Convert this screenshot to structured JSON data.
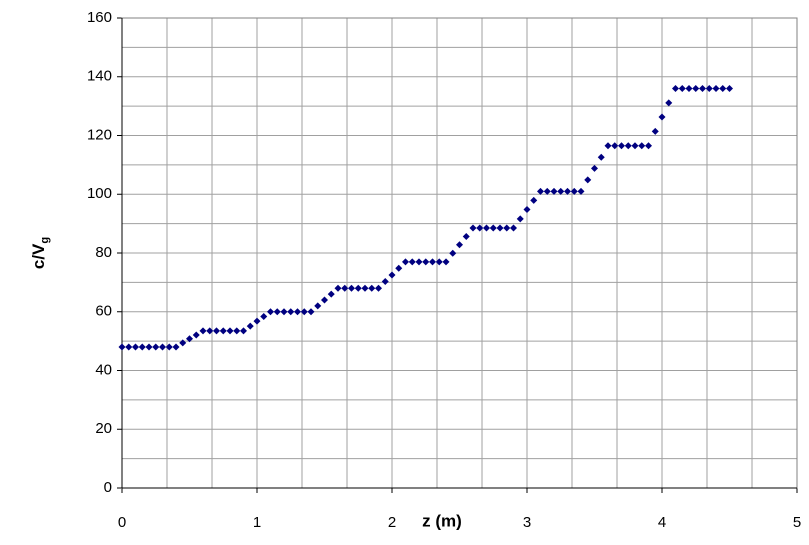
{
  "chart_data": {
    "type": "scatter",
    "x_label": "z (m)",
    "y_label": {
      "text": "c/V",
      "subscript": "g"
    },
    "xlim": [
      0,
      5
    ],
    "ylim": [
      0,
      160
    ],
    "xticks": [
      0,
      1,
      2,
      3,
      4,
      5
    ],
    "yticks": [
      0,
      20,
      40,
      60,
      80,
      100,
      120,
      140,
      160
    ],
    "x_minor_grid": [
      0.3333,
      0.6667,
      1.3333,
      1.6667,
      2.3333,
      2.6667,
      3.3333,
      3.6667,
      4.3333,
      4.6667
    ],
    "y_minor_grid": [
      10,
      30,
      50,
      70,
      90,
      110,
      130,
      150
    ],
    "grid": true,
    "color": "#000080",
    "x": [
      0,
      0.05,
      0.1,
      0.15,
      0.2,
      0.25,
      0.3,
      0.35,
      0.4,
      0.45,
      0.5,
      0.55,
      0.6,
      0.65,
      0.7,
      0.75,
      0.8,
      0.85,
      0.9,
      0.95,
      1,
      1.05,
      1.1,
      1.15,
      1.2,
      1.25,
      1.3,
      1.35,
      1.4,
      1.45,
      1.5,
      1.55,
      1.6,
      1.65,
      1.7,
      1.75,
      1.8,
      1.85,
      1.9,
      1.95,
      2,
      2.05,
      2.1,
      2.15,
      2.2,
      2.25,
      2.3,
      2.35,
      2.4,
      2.45,
      2.5,
      2.55,
      2.6,
      2.65,
      2.7,
      2.75,
      2.8,
      2.85,
      2.9,
      2.95,
      3,
      3.05,
      3.1,
      3.15,
      3.2,
      3.25,
      3.3,
      3.35,
      3.4,
      3.45,
      3.5,
      3.55,
      3.6,
      3.65,
      3.7,
      3.75,
      3.8,
      3.85,
      3.9,
      3.95,
      4,
      4.05,
      4.1,
      4.15,
      4.2,
      4.25,
      4.3,
      4.35,
      4.4,
      4.45,
      4.5
    ],
    "values": [
      48,
      48,
      48,
      48,
      48,
      48,
      48,
      48,
      48,
      49.4,
      50.8,
      52.1,
      53.5,
      53.5,
      53.5,
      53.5,
      53.5,
      53.5,
      53.5,
      55.1,
      56.8,
      58.4,
      60,
      60,
      60,
      60,
      60,
      60,
      60,
      62,
      64,
      66,
      68,
      68,
      68,
      68,
      68,
      68,
      68,
      70.3,
      72.5,
      74.8,
      77,
      77,
      77,
      77,
      77,
      77,
      77,
      79.9,
      82.8,
      85.6,
      88.5,
      88.5,
      88.5,
      88.5,
      88.5,
      88.5,
      88.5,
      91.6,
      94.8,
      97.9,
      101,
      101,
      101,
      101,
      101,
      101,
      101,
      104.9,
      108.8,
      112.6,
      116.5,
      116.5,
      116.5,
      116.5,
      116.5,
      116.5,
      116.5,
      121.4,
      126.3,
      131.1,
      136,
      136,
      136,
      136,
      136,
      136,
      136,
      136,
      136
    ]
  }
}
